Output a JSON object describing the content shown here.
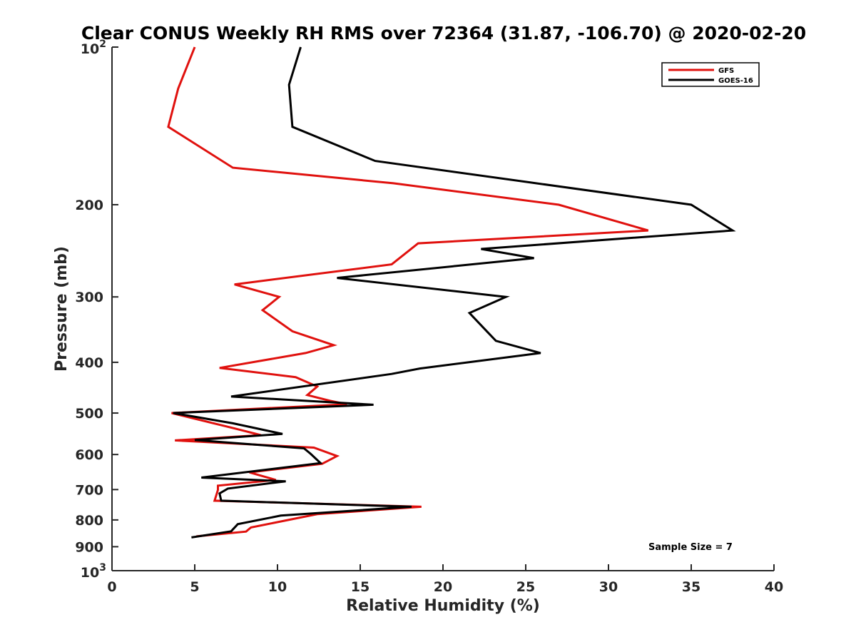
{
  "chart_data": {
    "type": "line",
    "title": "Clear CONUS Weekly RH RMS over 72364 (31.87, -106.70) @ 2020-02-20",
    "xlabel": "Relative Humidity (%)",
    "ylabel": "Pressure (mb)",
    "xlim": [
      0,
      40
    ],
    "ylim": [
      100,
      1000
    ],
    "y_scale": "log",
    "y_reversed": true,
    "grid": false,
    "legend_position": "top-right",
    "x_ticks": [
      "0",
      "5",
      "10",
      "15",
      "20",
      "25",
      "30",
      "35",
      "40"
    ],
    "x_tick_values": [
      0,
      5,
      10,
      15,
      20,
      25,
      30,
      35,
      40
    ],
    "y_ticks": [
      {
        "value": 200,
        "label": "200"
      },
      {
        "value": 300,
        "label": "300"
      },
      {
        "value": 400,
        "label": "400"
      },
      {
        "value": 500,
        "label": "500"
      },
      {
        "value": 600,
        "label": "600"
      },
      {
        "value": 700,
        "label": "700"
      },
      {
        "value": 800,
        "label": "800"
      },
      {
        "value": 900,
        "label": "900"
      }
    ],
    "y_ticks_power": [
      {
        "value": 100,
        "base": "10",
        "exp": "2"
      },
      {
        "value": 1000,
        "base": "10",
        "exp": "3"
      }
    ],
    "annotation": "Sample Size = 7",
    "series": [
      {
        "name": "GFS",
        "color": "#e0110e",
        "points": [
          [
            5.0,
            100
          ],
          [
            4.0,
            120
          ],
          [
            3.4,
            142
          ],
          [
            7.3,
            170
          ],
          [
            17.0,
            182
          ],
          [
            27.0,
            200
          ],
          [
            32.4,
            224
          ],
          [
            18.5,
            237
          ],
          [
            16.9,
            260
          ],
          [
            7.4,
            284
          ],
          [
            10.1,
            300
          ],
          [
            9.1,
            318
          ],
          [
            10.9,
            349
          ],
          [
            13.4,
            371
          ],
          [
            11.7,
            384
          ],
          [
            6.5,
            410
          ],
          [
            11.1,
            427
          ],
          [
            12.4,
            445
          ],
          [
            11.8,
            462
          ],
          [
            13.2,
            474
          ],
          [
            14.2,
            481
          ],
          [
            3.6,
            500
          ],
          [
            7.4,
            535
          ],
          [
            9.0,
            551
          ],
          [
            3.8,
            564
          ],
          [
            12.2,
            582
          ],
          [
            13.6,
            604
          ],
          [
            12.7,
            625
          ],
          [
            8.3,
            649
          ],
          [
            9.9,
            671
          ],
          [
            6.4,
            688
          ],
          [
            6.4,
            701
          ],
          [
            6.2,
            735
          ],
          [
            18.7,
            755
          ],
          [
            12.4,
            780
          ],
          [
            8.4,
            827
          ],
          [
            8.1,
            842
          ],
          [
            5.1,
            860
          ]
        ]
      },
      {
        "name": "GOES-16",
        "color": "#000000",
        "points": [
          [
            11.4,
            100
          ],
          [
            10.7,
            118
          ],
          [
            10.9,
            142
          ],
          [
            15.9,
            165
          ],
          [
            35.0,
            200
          ],
          [
            37.5,
            224
          ],
          [
            22.3,
            243
          ],
          [
            25.5,
            253
          ],
          [
            13.6,
            276
          ],
          [
            23.8,
            300
          ],
          [
            21.6,
            322
          ],
          [
            22.5,
            345
          ],
          [
            23.2,
            364
          ],
          [
            25.9,
            384
          ],
          [
            18.6,
            411
          ],
          [
            16.9,
            421
          ],
          [
            7.2,
            465
          ],
          [
            15.8,
            482
          ],
          [
            3.7,
            500
          ],
          [
            7.3,
            523
          ],
          [
            10.3,
            548
          ],
          [
            5.0,
            563
          ],
          [
            11.6,
            584
          ],
          [
            12.0,
            598
          ],
          [
            12.6,
            623
          ],
          [
            5.4,
            664
          ],
          [
            10.5,
            675
          ],
          [
            7.0,
            697
          ],
          [
            6.5,
            712
          ],
          [
            6.6,
            735
          ],
          [
            18.1,
            755
          ],
          [
            10.2,
            785
          ],
          [
            7.6,
            815
          ],
          [
            7.2,
            841
          ],
          [
            4.8,
            864
          ]
        ]
      }
    ]
  }
}
